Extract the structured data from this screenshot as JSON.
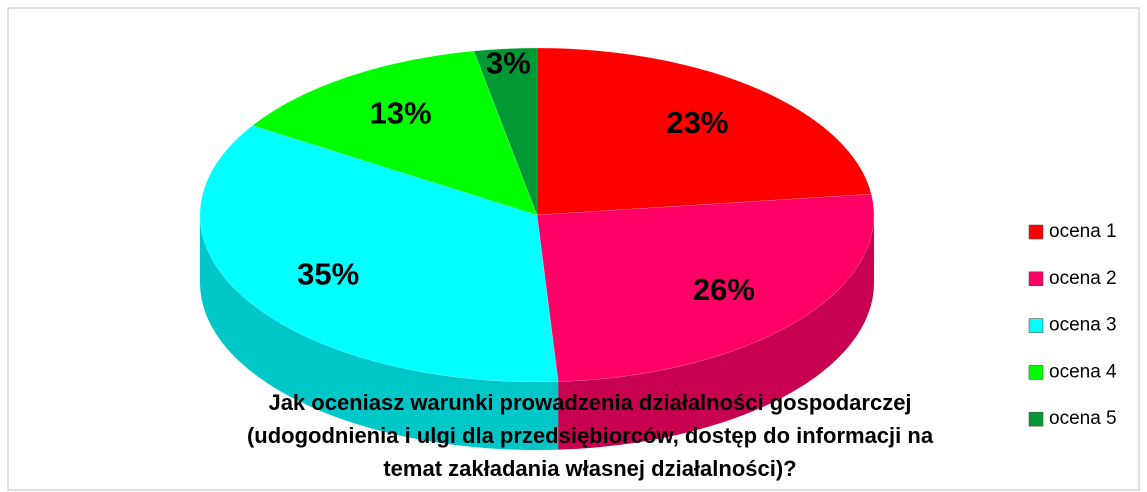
{
  "chart_data": {
    "type": "pie",
    "title": [
      "Jak oceniasz warunki prowadzenia działalności gospodarczej",
      "(udogodnienia i ulgi dla przedsiębiorców, dostęp do informacji na",
      "temat zakładania własnej działalności)?"
    ],
    "categories": [
      "ocena 1",
      "ocena 2",
      "ocena 3",
      "ocena 4",
      "ocena 5"
    ],
    "values": [
      23,
      26,
      35,
      13,
      3
    ],
    "value_labels": [
      "23%",
      "26%",
      "35%",
      "13%",
      "3%"
    ],
    "colors": [
      "#ff0000",
      "#ff0066",
      "#00ffff",
      "#00ff00",
      "#009933"
    ],
    "legend": "right"
  }
}
